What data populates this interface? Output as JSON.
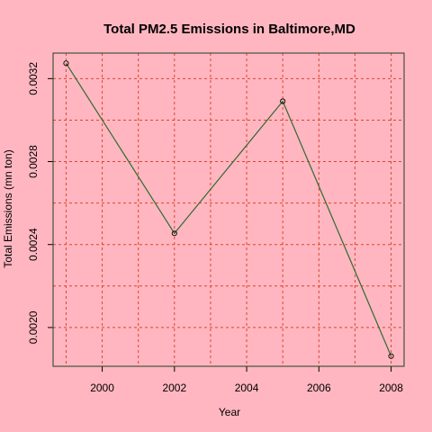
{
  "chart_data": {
    "type": "line",
    "title": "Total PM2.5 Emissions in Baltimore,MD",
    "xlabel": "Year",
    "ylabel": "Total Emissions (mn ton)",
    "x": [
      1999,
      2002,
      2005,
      2008
    ],
    "series": [
      {
        "values": [
          0.003274,
          0.002454,
          0.003091,
          0.001862
        ]
      }
    ],
    "xlim": [
      1998.64,
      2008.36
    ],
    "ylim": [
      0.001813,
      0.003323
    ],
    "xticks": [
      2000,
      2002,
      2004,
      2006,
      2008
    ],
    "xtick_labels": [
      "2000",
      "2002",
      "2004",
      "2006",
      "2008"
    ],
    "yticks": [
      0.002,
      0.0024,
      0.0028,
      0.0032
    ],
    "ytick_labels": [
      "0.0020",
      "0.0024",
      "0.0028",
      "0.0032"
    ],
    "grid": true,
    "colors": {
      "background": "#ffb6c1",
      "grid": "#e0442b",
      "line": "#2f6b2f",
      "frame": "#1f3f1f",
      "point_edge": "#000000"
    }
  }
}
